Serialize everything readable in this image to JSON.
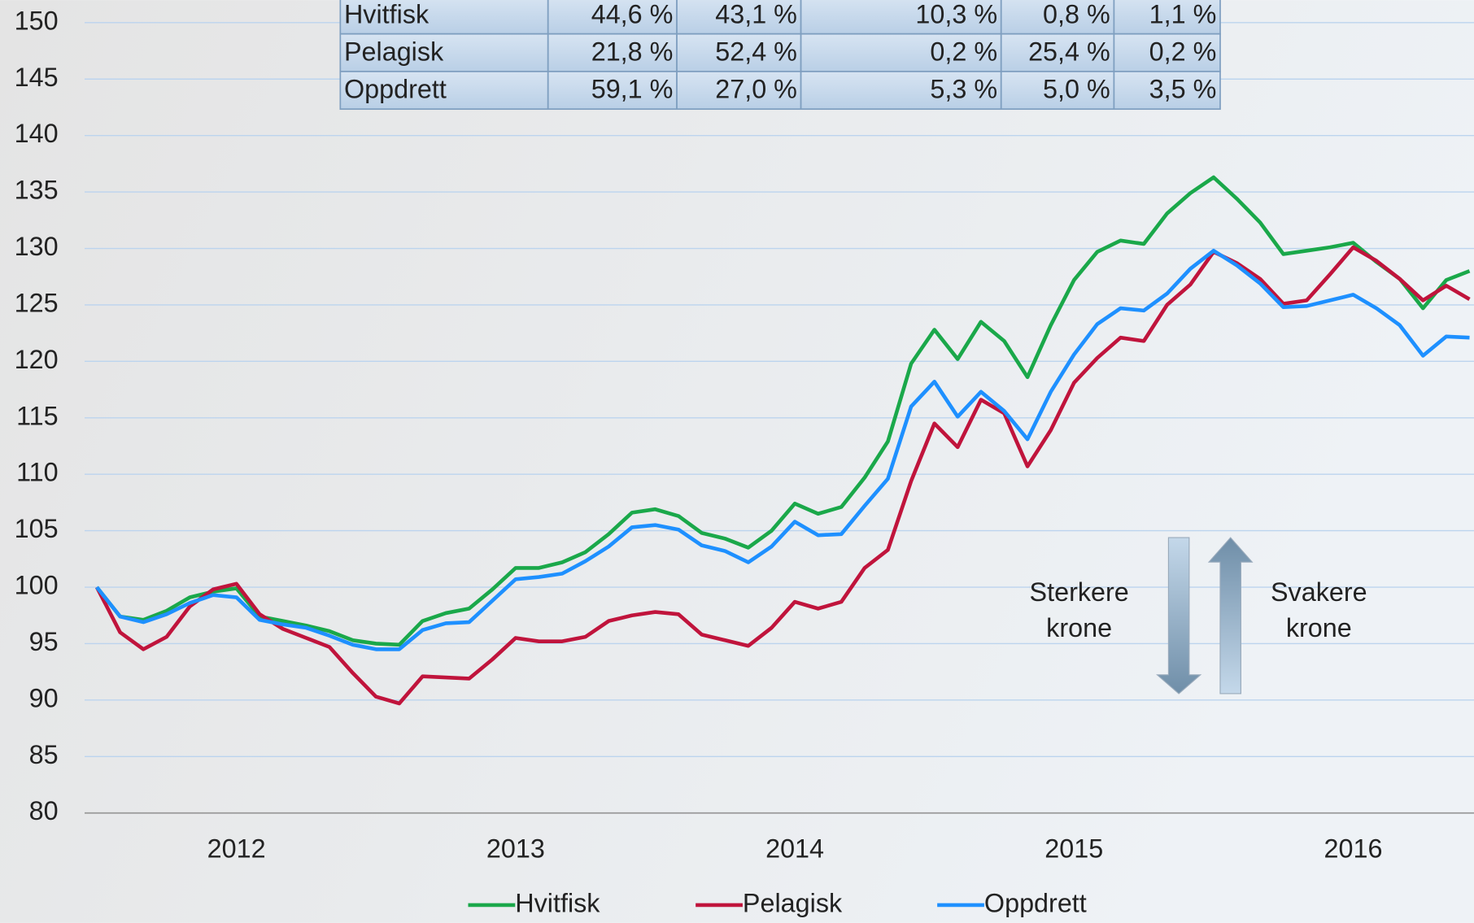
{
  "chart_data": {
    "type": "line",
    "categories": [
      null,
      null,
      null,
      null,
      null,
      null,
      "2012",
      null,
      null,
      null,
      null,
      null,
      null,
      null,
      null,
      null,
      null,
      null,
      "2013",
      null,
      null,
      null,
      null,
      null,
      null,
      null,
      null,
      null,
      null,
      null,
      "2014",
      null,
      null,
      null,
      null,
      null,
      null,
      null,
      null,
      null,
      null,
      null,
      "2015",
      null,
      null,
      null,
      null,
      null,
      null,
      null,
      null,
      null,
      null,
      null,
      "2016",
      null,
      null,
      null,
      null,
      null
    ],
    "series": [
      {
        "name": "Hvitfisk",
        "color": "#1aa84a",
        "values": [
          100,
          97.4,
          97.1,
          97.9,
          99.1,
          99.6,
          99.9,
          97.4,
          97.0,
          96.6,
          96.1,
          95.3,
          95.0,
          94.9,
          97.0,
          97.7,
          98.1,
          99.8,
          101.7,
          101.7,
          102.2,
          103.1,
          104.7,
          106.6,
          106.9,
          106.3,
          104.8,
          104.3,
          103.5,
          105.0,
          107.4,
          106.5,
          107.1,
          109.7,
          112.9,
          119.8,
          122.8,
          120.2,
          123.5,
          121.8,
          118.6,
          123.2,
          127.2,
          129.7,
          130.7,
          130.4,
          133.1,
          134.9,
          136.3,
          134.4,
          132.3,
          129.5,
          129.8,
          130.1,
          130.5,
          128.8,
          127.3,
          124.7,
          127.2,
          128.0
        ]
      },
      {
        "name": "Pelagisk",
        "color": "#c0143c",
        "values": [
          100,
          96.0,
          94.5,
          95.6,
          98.3,
          99.8,
          100.3,
          97.6,
          96.3,
          95.5,
          94.7,
          92.4,
          90.3,
          89.7,
          92.1,
          92.0,
          91.9,
          93.6,
          95.5,
          95.2,
          95.2,
          95.6,
          97.0,
          97.5,
          97.8,
          97.6,
          95.8,
          95.3,
          94.8,
          96.4,
          98.7,
          98.1,
          98.7,
          101.7,
          103.3,
          109.4,
          114.5,
          112.4,
          116.6,
          115.4,
          110.7,
          113.9,
          118.1,
          120.3,
          122.1,
          121.8,
          125.0,
          126.8,
          129.7,
          128.7,
          127.3,
          125.1,
          125.4,
          127.7,
          130.1,
          128.9,
          127.3,
          125.4,
          126.7,
          125.5
        ]
      },
      {
        "name": "Oppdrett",
        "color": "#1e90ff",
        "values": [
          100,
          97.4,
          96.9,
          97.6,
          98.6,
          99.3,
          99.1,
          97.1,
          96.7,
          96.4,
          95.7,
          94.9,
          94.5,
          94.5,
          96.2,
          96.8,
          96.9,
          98.8,
          100.7,
          100.9,
          101.2,
          102.3,
          103.6,
          105.3,
          105.5,
          105.1,
          103.7,
          103.2,
          102.2,
          103.6,
          105.8,
          104.6,
          104.7,
          107.2,
          109.6,
          116.0,
          118.2,
          115.1,
          117.3,
          115.6,
          113.1,
          117.3,
          120.6,
          123.3,
          124.7,
          124.5,
          126.0,
          128.2,
          129.8,
          128.5,
          126.9,
          124.8,
          124.9,
          125.4,
          125.9,
          124.7,
          123.2,
          120.5,
          122.2,
          122.1
        ]
      }
    ],
    "ylim": [
      80,
      150
    ],
    "yticks": [
      80,
      85,
      90,
      95,
      100,
      105,
      110,
      115,
      120,
      125,
      130,
      135,
      140,
      145,
      150
    ],
    "grid": true,
    "annotations": [
      [
        "Sterkere",
        "krone"
      ],
      [
        "Svakere",
        "krone"
      ]
    ]
  },
  "table": {
    "rows": [
      [
        "Hvitfisk",
        "44,6 %",
        "43,1 %",
        "10,3 %",
        "0,8 %",
        "1,1 %"
      ],
      [
        "Pelagisk",
        "21,8 %",
        "52,4 %",
        "0,2 %",
        "25,4 %",
        "0,2 %"
      ],
      [
        "Oppdrett",
        "59,1 %",
        "27,0 %",
        "5,3 %",
        "5,0 %",
        "3,5 %"
      ]
    ]
  }
}
